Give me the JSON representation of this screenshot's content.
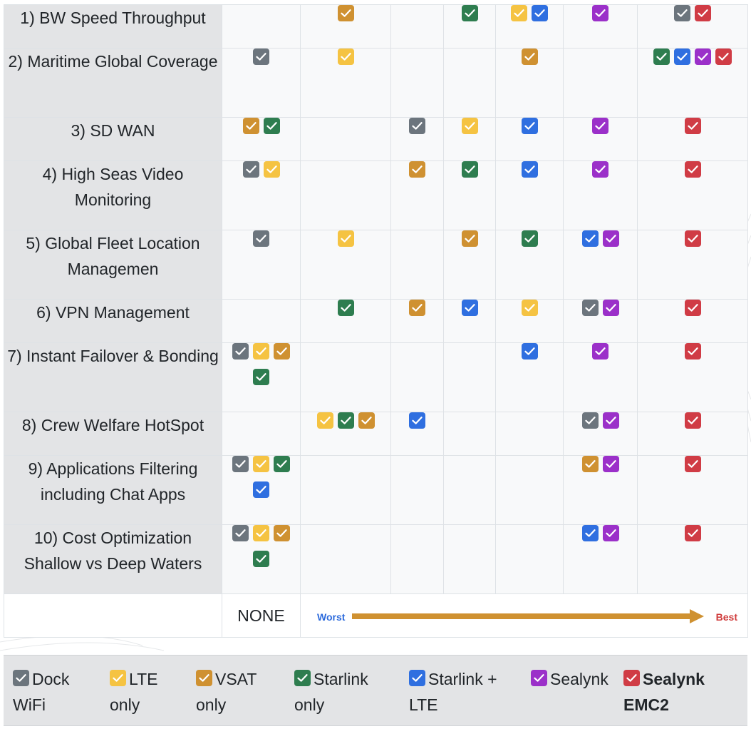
{
  "colors": {
    "dock_wifi": "#6c757d",
    "lte": "#f5c342",
    "vsat": "#cf9131",
    "starlink": "#2e7d4f",
    "starlink_lte": "#2f6fe0",
    "sealynk": "#9b30c9",
    "sealynk_emc2": "#d03c45"
  },
  "rows": [
    {
      "label": "1) BW Speed Throughput",
      "cells": [
        [],
        [
          "vsat"
        ],
        [],
        [
          "starlink"
        ],
        [
          "lte",
          "starlink_lte"
        ],
        [
          "sealynk"
        ],
        [
          "dock_wifi",
          "sealynk_emc2"
        ]
      ]
    },
    {
      "label": "2) Maritime Global Coverage",
      "cells": [
        [
          "dock_wifi"
        ],
        [
          "lte"
        ],
        [],
        [],
        [
          "vsat"
        ],
        [],
        [
          "starlink",
          "starlink_lte",
          "sealynk",
          "sealynk_emc2"
        ]
      ]
    },
    {
      "label": "3) SD WAN",
      "cells": [
        [
          "vsat",
          "starlink"
        ],
        [],
        [
          "dock_wifi"
        ],
        [
          "lte"
        ],
        [
          "starlink_lte"
        ],
        [
          "sealynk"
        ],
        [
          "sealynk_emc2"
        ]
      ]
    },
    {
      "label": "4) High Seas Video Monitoring",
      "cells": [
        [
          "dock_wifi",
          "lte"
        ],
        [],
        [
          "vsat"
        ],
        [
          "starlink"
        ],
        [
          "starlink_lte"
        ],
        [
          "sealynk"
        ],
        [
          "sealynk_emc2"
        ]
      ]
    },
    {
      "label": "5) Global Fleet Location Managemen",
      "cells": [
        [
          "dock_wifi"
        ],
        [
          "lte"
        ],
        [],
        [
          "vsat"
        ],
        [
          "starlink"
        ],
        [
          "starlink_lte",
          "sealynk"
        ],
        [
          "sealynk_emc2"
        ]
      ]
    },
    {
      "label": "6) VPN Management",
      "cells": [
        [],
        [
          "starlink"
        ],
        [
          "vsat"
        ],
        [
          "starlink_lte"
        ],
        [
          "lte"
        ],
        [
          "dock_wifi",
          "sealynk"
        ],
        [
          "sealynk_emc2"
        ]
      ]
    },
    {
      "label": "7) Instant Failover & Bonding",
      "cells": [
        [
          "dock_wifi",
          "lte",
          "vsat",
          "starlink"
        ],
        [],
        [],
        [],
        [
          "starlink_lte"
        ],
        [
          "sealynk"
        ],
        [
          "sealynk_emc2"
        ]
      ]
    },
    {
      "label": "8) Crew Welfare HotSpot",
      "cells": [
        [],
        [
          "lte",
          "starlink",
          "vsat"
        ],
        [
          "starlink_lte"
        ],
        [],
        [],
        [
          "dock_wifi",
          "sealynk"
        ],
        [
          "sealynk_emc2"
        ]
      ]
    },
    {
      "label": "9) Applications Filtering including Chat Apps",
      "cells": [
        [
          "dock_wifi",
          "lte",
          "starlink",
          "starlink_lte"
        ],
        [],
        [],
        [],
        [],
        [
          "vsat",
          "sealynk"
        ],
        [
          "sealynk_emc2"
        ]
      ]
    },
    {
      "label": "10) Cost Optimization Shallow vs Deep Waters",
      "cells": [
        [
          "dock_wifi",
          "lte",
          "vsat",
          "starlink"
        ],
        [],
        [],
        [],
        [],
        [
          "starlink_lte",
          "sealynk"
        ],
        [
          "sealynk_emc2"
        ]
      ]
    }
  ],
  "footer": {
    "none_label": "NONE",
    "worst_label": "Worst",
    "best_label": "Best",
    "arrow_color": "#cf9131"
  },
  "legend": [
    {
      "key": "dock_wifi",
      "text": "Dock WiFi",
      "bold": false
    },
    {
      "key": "lte",
      "text": "LTE only",
      "bold": false
    },
    {
      "key": "vsat",
      "text": "VSAT only",
      "bold": false
    },
    {
      "key": "starlink",
      "text": "Starlink only",
      "bold": false
    },
    {
      "key": "starlink_lte",
      "text": "Starlink + LTE",
      "bold": false
    },
    {
      "key": "sealynk",
      "text": "Sealynk",
      "bold": false
    },
    {
      "key": "sealynk_emc2",
      "text": "Sealynk EMC2",
      "bold": true
    }
  ]
}
